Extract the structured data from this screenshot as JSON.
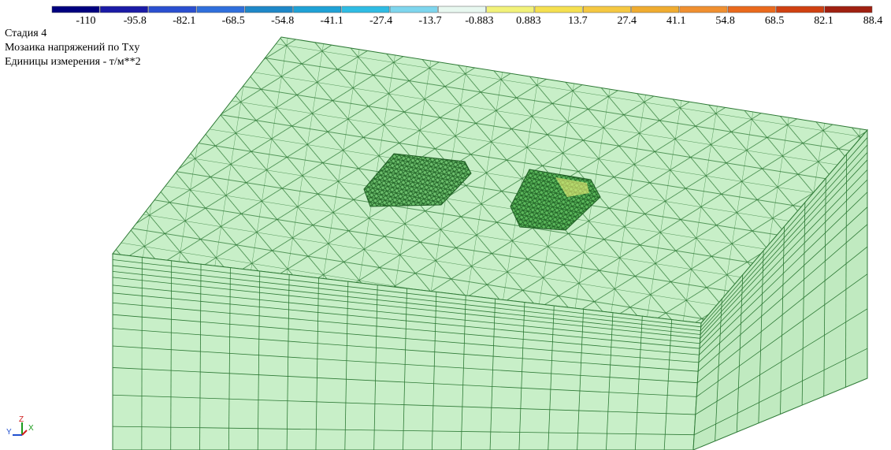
{
  "legend": {
    "labels": [
      "-110",
      "-95.8",
      "-82.1",
      "-68.5",
      "-54.8",
      "-41.1",
      "-27.4",
      "-13.7",
      "-0.883",
      "0.883",
      "13.7",
      "27.4",
      "41.1",
      "54.8",
      "68.5",
      "82.1",
      "88.4"
    ],
    "colors": [
      "#00007f",
      "#1a1aa6",
      "#2a4fd0",
      "#2f6fdc",
      "#1e88c8",
      "#1fa2d6",
      "#2fbce4",
      "#7ed6ee",
      "#e8f8f0",
      "#f2f27a",
      "#f5e050",
      "#f5c842",
      "#f0ac30",
      "#f09030",
      "#ea6a1c",
      "#d04010",
      "#a02010"
    ]
  },
  "info": {
    "stage": "Стадия 4",
    "title": "Мозаика напряжений по Txy",
    "units": "Единицы измерения - т/м**2"
  },
  "axes": {
    "y": "Y",
    "z": "Z",
    "x": "X"
  }
}
